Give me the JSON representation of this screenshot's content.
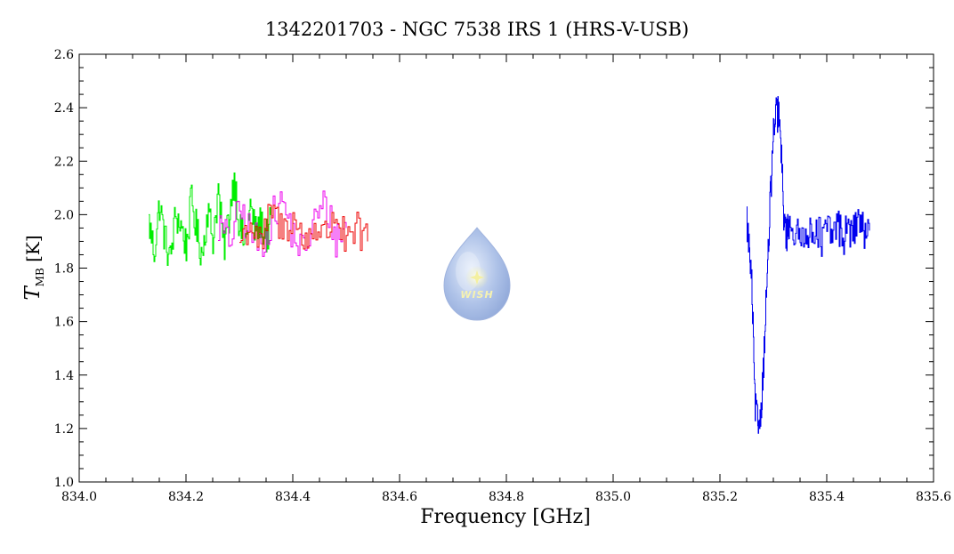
{
  "chart_data": {
    "type": "line",
    "title": "1342201703 - NGC 7538 IRS 1 (HRS-V-USB)",
    "xlabel": "Frequency [GHz]",
    "ylabel_main": "T",
    "ylabel_sub": "MB",
    "ylabel_unit": "[K]",
    "xlim": [
      834.0,
      835.6
    ],
    "ylim": [
      1.0,
      2.6
    ],
    "x_ticks": [
      834.0,
      834.2,
      834.4,
      834.6,
      834.8,
      835.0,
      835.2,
      835.4,
      835.6
    ],
    "x_tick_labels": [
      "834.0",
      "834.2",
      "834.4",
      "834.6",
      "834.8",
      "835.0",
      "835.2",
      "835.4",
      "835.6"
    ],
    "y_ticks": [
      1.0,
      1.2,
      1.4,
      1.6,
      1.8,
      2.0,
      2.2,
      2.4,
      2.6
    ],
    "y_tick_labels": [
      "1.0",
      "1.2",
      "1.4",
      "1.6",
      "1.8",
      "2.0",
      "2.2",
      "2.4",
      "2.6"
    ],
    "grid": false,
    "series": [
      {
        "color": "#00ee00",
        "x": [
          834.13,
          834.14,
          834.15,
          834.16,
          834.17,
          834.18,
          834.19,
          834.2,
          834.21,
          834.22,
          834.23,
          834.24,
          834.25,
          834.26,
          834.27,
          834.28,
          834.29,
          834.3,
          834.31,
          834.32,
          834.33,
          834.34,
          834.35,
          834.36
        ],
        "y": [
          1.97,
          1.86,
          2.04,
          1.91,
          1.83,
          2.0,
          1.96,
          1.88,
          2.06,
          1.93,
          1.85,
          2.02,
          1.91,
          2.09,
          1.87,
          1.99,
          2.15,
          1.95,
          1.89,
          2.03,
          1.93,
          1.97,
          1.91,
          1.98
        ]
      },
      {
        "color": "#ee00ee",
        "x": [
          834.26,
          834.28,
          834.3,
          834.32,
          834.34,
          834.36,
          834.38,
          834.4,
          834.42,
          834.44,
          834.46,
          834.48,
          834.5
        ],
        "y": [
          1.96,
          1.9,
          2.02,
          1.93,
          1.88,
          1.99,
          2.05,
          1.92,
          1.86,
          1.98,
          2.04,
          1.91,
          1.95
        ]
      },
      {
        "color": "#ee0000",
        "x": [
          834.3,
          834.32,
          834.34,
          834.36,
          834.38,
          834.4,
          834.42,
          834.44,
          834.46,
          834.48,
          834.5,
          834.52,
          834.54
        ],
        "y": [
          1.9,
          1.97,
          1.88,
          2.02,
          1.94,
          1.99,
          1.89,
          1.96,
          1.92,
          2.01,
          1.88,
          1.94,
          1.9
        ]
      },
      {
        "color": "#0000ee",
        "x": [
          835.25,
          835.255,
          835.26,
          835.265,
          835.27,
          835.275,
          835.28,
          835.285,
          835.29,
          835.295,
          835.3,
          835.305,
          835.31,
          835.315,
          835.32,
          835.325,
          835.33,
          835.34,
          835.35,
          835.36,
          835.37,
          835.38,
          835.39,
          835.4,
          835.41,
          835.42,
          835.43,
          835.44,
          835.45,
          835.46,
          835.47,
          835.48
        ],
        "y": [
          1.98,
          1.86,
          1.7,
          1.3,
          1.22,
          1.24,
          1.38,
          1.62,
          1.85,
          2.1,
          2.3,
          2.37,
          2.38,
          2.2,
          1.97,
          1.92,
          1.98,
          1.93,
          1.9,
          1.96,
          1.91,
          1.97,
          1.9,
          1.95,
          1.92,
          1.97,
          1.91,
          1.95,
          1.93,
          2.0,
          1.91,
          1.94
        ]
      }
    ],
    "logo": {
      "text": "WISH",
      "colors": {
        "drop_light": "#dce6f7",
        "drop_mid": "#a8bde6",
        "drop_dark": "#8fa8d8",
        "star": "#f4f0a0",
        "text": "#f6f2b0"
      }
    }
  }
}
